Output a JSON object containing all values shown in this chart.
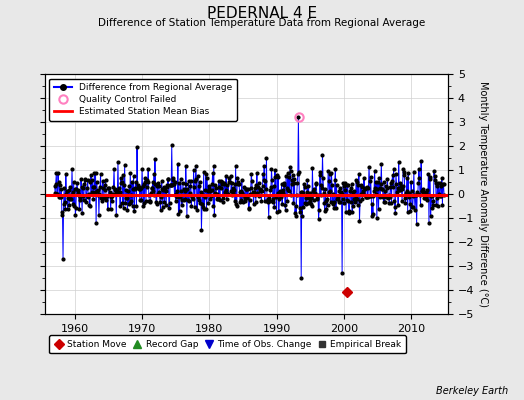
{
  "title": "PEDERNAL 4 E",
  "subtitle": "Difference of Station Temperature Data from Regional Average",
  "ylabel": "Monthly Temperature Anomaly Difference (°C)",
  "ylim": [
    -5,
    5
  ],
  "xlim": [
    1955.5,
    2015.5
  ],
  "background_color": "#e8e8e8",
  "plot_bg_color": "#ffffff",
  "bias_line_value": -0.05,
  "bias_line_color": "#ff0000",
  "data_line_color": "#0000ff",
  "data_dot_color": "#000000",
  "qc_fail_x": 1993.3,
  "qc_fail_y": 3.2,
  "station_move_x": 2000.5,
  "station_move_y": -4.1,
  "footer": "Berkeley Earth",
  "seed": 42,
  "start_year": 1957.0,
  "end_year": 2015.0
}
